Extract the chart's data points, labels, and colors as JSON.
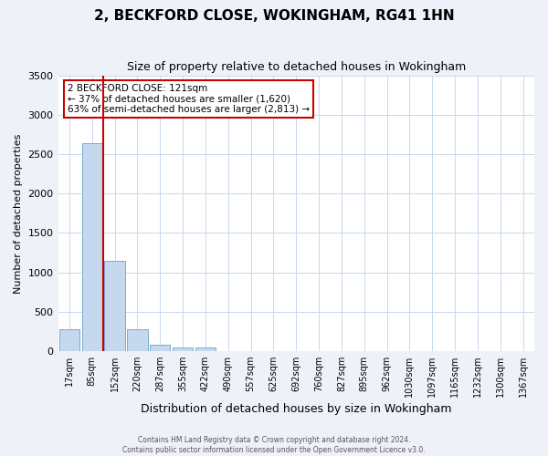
{
  "title": "2, BECKFORD CLOSE, WOKINGHAM, RG41 1HN",
  "subtitle": "Size of property relative to detached houses in Wokingham",
  "xlabel": "Distribution of detached houses by size in Wokingham",
  "ylabel": "Number of detached properties",
  "bar_labels": [
    "17sqm",
    "85sqm",
    "152sqm",
    "220sqm",
    "287sqm",
    "355sqm",
    "422sqm",
    "490sqm",
    "557sqm",
    "625sqm",
    "692sqm",
    "760sqm",
    "827sqm",
    "895sqm",
    "962sqm",
    "1030sqm",
    "1097sqm",
    "1165sqm",
    "1232sqm",
    "1300sqm",
    "1367sqm"
  ],
  "bar_values": [
    270,
    2640,
    1140,
    275,
    80,
    40,
    40,
    0,
    0,
    0,
    0,
    0,
    0,
    0,
    0,
    0,
    0,
    0,
    0,
    0,
    0
  ],
  "bar_color": "#c5d8ee",
  "bar_edge_color": "#7aabcf",
  "vline_color": "#cc0000",
  "annotation_title": "2 BECKFORD CLOSE: 121sqm",
  "annotation_line1": "← 37% of detached houses are smaller (1,620)",
  "annotation_line2": "63% of semi-detached houses are larger (2,813) →",
  "annotation_box_color": "white",
  "annotation_box_edge_color": "#cc0000",
  "ylim": [
    0,
    3500
  ],
  "yticks": [
    0,
    500,
    1000,
    1500,
    2000,
    2500,
    3000,
    3500
  ],
  "footer1": "Contains HM Land Registry data © Crown copyright and database right 2024.",
  "footer2": "Contains public sector information licensed under the Open Government Licence v3.0.",
  "bg_color": "#eef2f8",
  "plot_bg_color": "#ffffff",
  "grid_color": "#c8d8ed"
}
